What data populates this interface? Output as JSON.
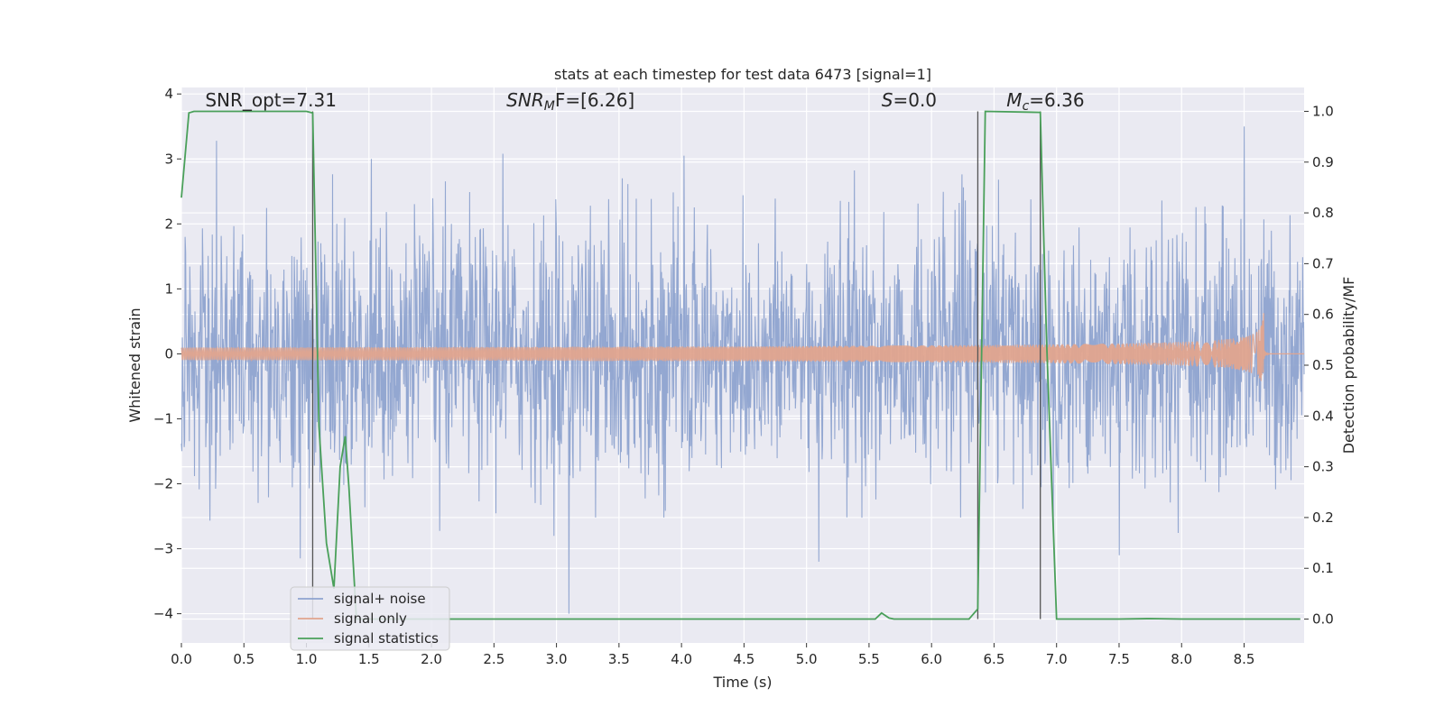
{
  "chart_data": {
    "type": "line",
    "title": "stats at each timestep for test data 6473 [signal=1]",
    "xlabel": "Time (s)",
    "ylabel_left": "Whitened strain",
    "ylabel_right": "Detection probability/MF",
    "xlim": [
      0.0,
      8.98
    ],
    "ylim_left": [
      -4.45,
      4.1
    ],
    "ylim_right": [
      -0.047,
      1.047
    ],
    "x_ticks": [
      0.0,
      0.5,
      1.0,
      1.5,
      2.0,
      2.5,
      3.0,
      3.5,
      4.0,
      4.5,
      5.0,
      5.5,
      6.0,
      6.5,
      7.0,
      7.5,
      8.0,
      8.5
    ],
    "x_tick_labels": [
      "0.0",
      "0.5",
      "1.0",
      "1.5",
      "2.0",
      "2.5",
      "3.0",
      "3.5",
      "4.0",
      "4.5",
      "5.0",
      "5.5",
      "6.0",
      "6.5",
      "7.0",
      "7.5",
      "8.0",
      "8.5"
    ],
    "y_left_ticks": [
      4,
      3,
      2,
      1,
      0,
      -1,
      -2,
      -3,
      -4
    ],
    "y_left_tick_labels": [
      "4",
      "3",
      "2",
      "1",
      "0",
      "−1",
      "−2",
      "−3",
      "−4"
    ],
    "y_right_ticks": [
      1.0,
      0.9,
      0.8,
      0.7,
      0.6,
      0.5,
      0.4,
      0.3,
      0.2,
      0.1,
      0.0
    ],
    "y_right_tick_labels": [
      "1.0",
      "0.9",
      "0.8",
      "0.7",
      "0.6",
      "0.5",
      "0.4",
      "0.3",
      "0.2",
      "0.1",
      "0.0"
    ],
    "grid": true,
    "legend_position": "lower-left",
    "annotations": [
      {
        "id": "snr-opt",
        "label": "SNR_opt=7.31",
        "x": 0.19,
        "y_right": 1.01
      },
      {
        "id": "snr-mf",
        "label": "SNR",
        "sub": "M",
        "label_tail": "F=[6.26]",
        "x": 2.6,
        "y_right": 1.01
      },
      {
        "id": "s-stat",
        "label": "S",
        "label_tail": "=0.0",
        "x": 5.6,
        "y_right": 1.01
      },
      {
        "id": "mc",
        "label": "M",
        "sub": "c",
        "label_tail": "=6.36",
        "x": 6.6,
        "y_right": 1.01
      }
    ],
    "vertical_lines": [
      1.05,
      6.37,
      6.87
    ],
    "series": [
      {
        "name": "signal+ noise",
        "color": "#8ea3cf",
        "axis": "left",
        "noise_sigma": 0.95,
        "peaks": [
          {
            "x": 0.28,
            "y": 3.28
          },
          {
            "x": 1.52,
            "y": 3.0
          },
          {
            "x": 2.57,
            "y": 3.08
          },
          {
            "x": 4.02,
            "y": 3.05
          },
          {
            "x": 8.5,
            "y": 3.5
          },
          {
            "x": 3.1,
            "y": -4.0
          },
          {
            "x": 7.5,
            "y": -3.1
          },
          {
            "x": 0.95,
            "y": -3.15
          },
          {
            "x": 5.1,
            "y": -3.2
          }
        ]
      },
      {
        "name": "signal only",
        "color": "#e0a48e",
        "axis": "left",
        "chirp_start": 4.3,
        "chirp_peak_time": 8.66,
        "chirp_end_amplitude": 0.85
      },
      {
        "name": "signal statistics",
        "color": "#4aa05a",
        "axis": "right",
        "x": [
          0.0,
          0.06,
          0.1,
          1.0,
          1.05,
          1.1,
          1.16,
          1.22,
          1.27,
          1.31,
          1.34,
          1.4,
          1.5,
          5.5,
          5.55,
          5.6,
          5.66,
          5.7,
          6.3,
          6.37,
          6.43,
          6.87,
          6.92,
          7.0,
          7.5,
          7.75,
          8.0,
          8.95
        ],
        "y": [
          0.83,
          0.997,
          1.0,
          1.0,
          0.997,
          0.38,
          0.15,
          0.06,
          0.3,
          0.36,
          0.26,
          0.0,
          0.0,
          0.0,
          0.0,
          0.012,
          0.002,
          0.0,
          0.0,
          0.02,
          1.0,
          0.998,
          0.55,
          0.0,
          0.0,
          0.001,
          0.0,
          0.0
        ]
      }
    ]
  }
}
